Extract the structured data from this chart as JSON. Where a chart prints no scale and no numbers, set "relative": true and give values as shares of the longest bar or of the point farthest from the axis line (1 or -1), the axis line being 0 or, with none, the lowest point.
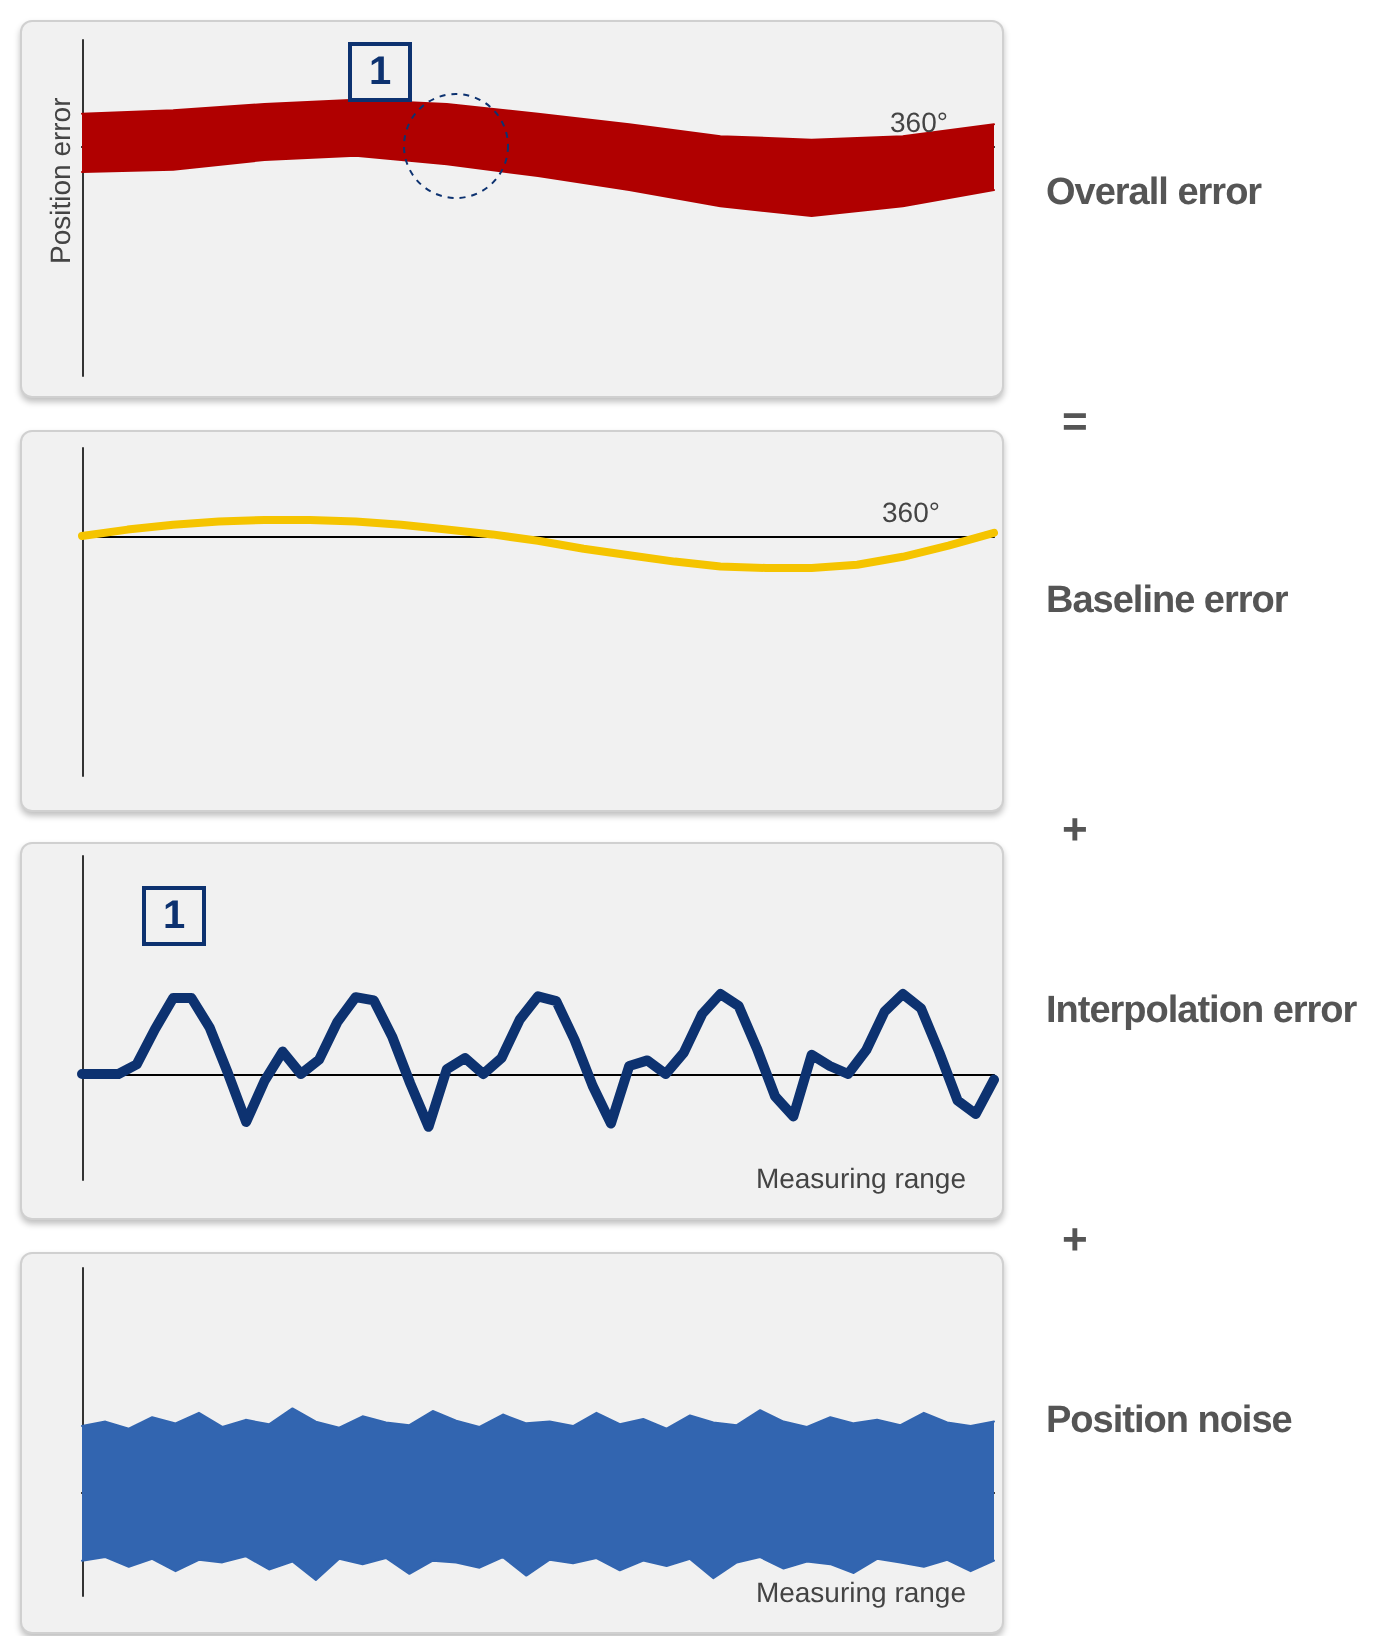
{
  "chart_data": [
    {
      "type": "area",
      "ylabel": "Position error",
      "relative": true,
      "tick_labels": false,
      "annotations": [
        "1",
        "360°",
        "Overall error"
      ],
      "categories": [
        null,
        null,
        null,
        null,
        null,
        null,
        null,
        null,
        null,
        null,
        null
      ],
      "series": [
        {
          "color": "#b00000",
          "values": [
            0.46,
            0.51,
            0.6,
            0.66,
            0.6,
            0.46,
            0.31,
            0.14,
            0.09,
            0.14,
            0.31
          ]
        },
        {
          "color": "#b00000",
          "values": [
            -0.37,
            -0.34,
            -0.2,
            -0.14,
            -0.26,
            -0.43,
            -0.63,
            -0.86,
            -1,
            -0.86,
            -0.63
          ]
        }
      ]
    },
    {
      "type": "line",
      "relative": true,
      "tick_labels": false,
      "annotations": [
        "=",
        "360°",
        "Baseline error"
      ],
      "categories": [
        null,
        null,
        null,
        null,
        null,
        null,
        null,
        null,
        null,
        null,
        null,
        null,
        null,
        null,
        null,
        null,
        null,
        null,
        null,
        null,
        null
      ],
      "series": [
        {
          "color": "#f5c400",
          "values": [
            0,
            0.2,
            0.35,
            0.45,
            0.5,
            0.5,
            0.45,
            0.35,
            0.2,
            0.05,
            -0.15,
            -0.4,
            -0.6,
            -0.8,
            -0.95,
            -1,
            -1,
            -0.9,
            -0.65,
            -0.3,
            0.1
          ]
        }
      ]
    },
    {
      "type": "line",
      "xlabel": "Measuring range",
      "relative": true,
      "tick_labels": false,
      "annotations": [
        "+",
        "1",
        "Interpolation error"
      ],
      "categories": [
        null,
        null,
        null,
        null,
        null,
        null,
        null,
        null,
        null,
        null,
        null,
        null,
        null,
        null,
        null,
        null,
        null,
        null,
        null,
        null,
        null,
        null,
        null,
        null,
        null,
        null,
        null,
        null,
        null,
        null,
        null,
        null,
        null,
        null,
        null,
        null,
        null,
        null,
        null,
        null,
        null,
        null,
        null,
        null,
        null,
        null,
        null,
        null,
        null,
        null,
        null
      ],
      "series": [
        {
          "color": "#0d3270",
          "values": [
            0,
            0,
            0,
            0.12,
            0.56,
            0.95,
            0.95,
            0.58,
            0.01,
            -0.6,
            -0.09,
            0.28,
            0,
            0.18,
            0.65,
            0.96,
            0.92,
            0.47,
            -0.12,
            -0.66,
            0.06,
            0.2,
            0,
            0.2,
            0.68,
            0.97,
            0.91,
            0.43,
            -0.15,
            -0.62,
            0.1,
            0.17,
            0,
            0.27,
            0.75,
            1,
            0.85,
            0.32,
            -0.28,
            -0.53,
            0.24,
            0.1,
            0,
            0.3,
            0.78,
            1,
            0.82,
            0.27,
            -0.33,
            -0.5,
            -0.07
          ]
        }
      ]
    },
    {
      "type": "area",
      "xlabel": "Measuring range",
      "relative": true,
      "tick_labels": false,
      "annotations": [
        "+",
        "Position noise"
      ],
      "categories": [
        null,
        null,
        null,
        null,
        null,
        null,
        null,
        null,
        null,
        null,
        null,
        null,
        null,
        null,
        null,
        null,
        null,
        null,
        null,
        null,
        null,
        null,
        null,
        null,
        null,
        null,
        null,
        null,
        null,
        null,
        null,
        null,
        null,
        null,
        null,
        null,
        null,
        null,
        null,
        null
      ],
      "series": [
        {
          "color": "#3265b0",
          "values": [
            0.75,
            0.8,
            0.72,
            0.85,
            0.78,
            0.9,
            0.74,
            0.82,
            0.77,
            0.95,
            0.8,
            0.73,
            0.86,
            0.79,
            0.76,
            0.92,
            0.81,
            0.74,
            0.88,
            0.78,
            0.8,
            0.75,
            0.9,
            0.77,
            0.83,
            0.72,
            0.87,
            0.79,
            0.76,
            0.93,
            0.8,
            0.74,
            0.85,
            0.78,
            0.82,
            0.76,
            0.9,
            0.79,
            0.75,
            0.8
          ]
        },
        {
          "color": "#3265b0",
          "values": [
            -0.78,
            -0.74,
            -0.85,
            -0.76,
            -0.9,
            -0.77,
            -0.8,
            -0.73,
            -0.88,
            -0.79,
            -1,
            -0.76,
            -0.82,
            -0.75,
            -0.93,
            -0.78,
            -0.8,
            -0.86,
            -0.74,
            -0.95,
            -0.77,
            -0.81,
            -0.75,
            -0.89,
            -0.78,
            -0.84,
            -0.76,
            -0.98,
            -0.8,
            -0.74,
            -0.87,
            -0.79,
            -0.82,
            -0.92,
            -0.76,
            -0.8,
            -0.85,
            -0.77,
            -0.9,
            -0.78
          ]
        }
      ]
    }
  ]
}
